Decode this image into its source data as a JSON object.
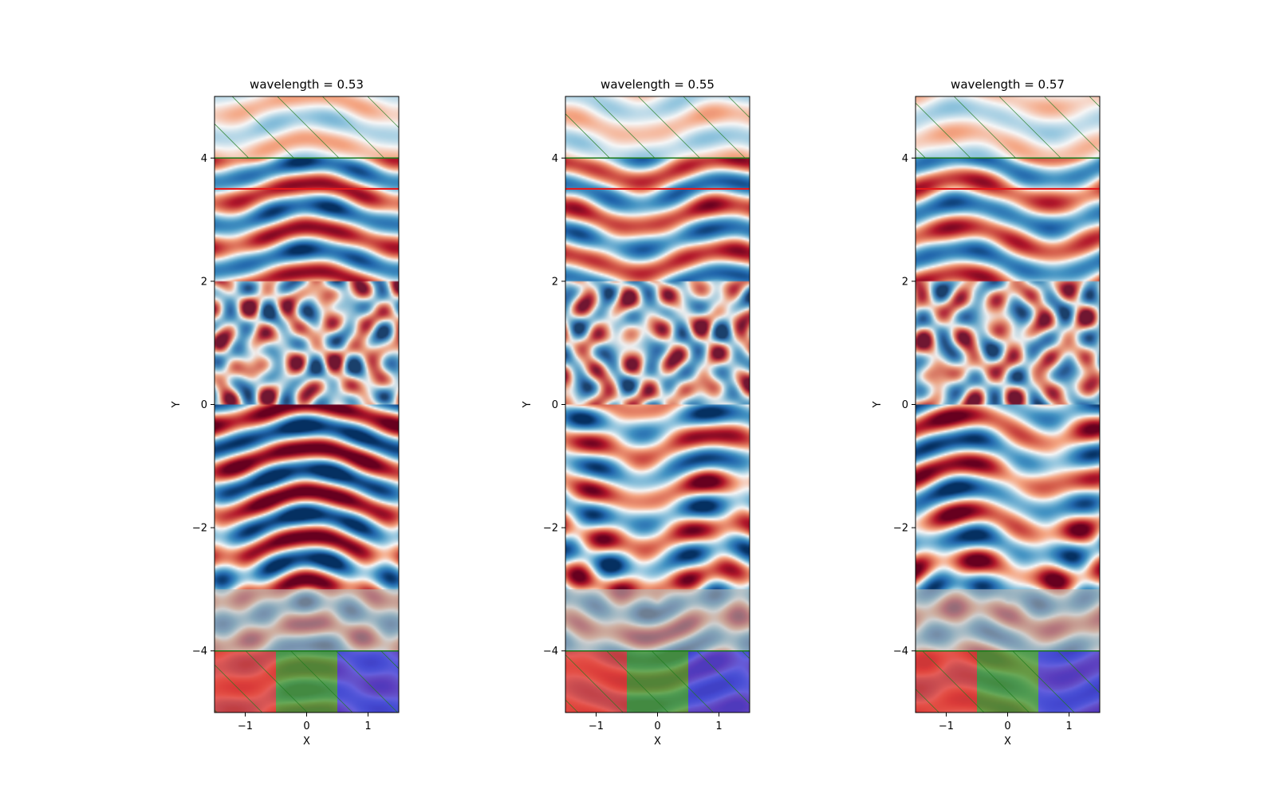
{
  "chart_data": [
    {
      "type": "heatmap",
      "title": "wavelength = 0.53",
      "xlabel": "X",
      "ylabel": "Y",
      "xlim": [
        -1.5,
        1.5
      ],
      "ylim": [
        -5,
        5
      ],
      "xticks": [
        -1,
        0,
        1
      ],
      "xtick_labels": [
        "−1",
        "0",
        "1"
      ],
      "yticks": [
        -4,
        -2,
        0,
        2,
        4
      ],
      "ytick_labels": [
        "−4",
        "−2",
        "0",
        "2",
        "4"
      ],
      "regions": [
        {
          "name": "top-boundary",
          "y0": 4,
          "y1": 5,
          "hatch": true
        },
        {
          "name": "scattering-layer",
          "y0": 0,
          "y1": 2
        },
        {
          "name": "bottom-grey-layer",
          "y0": -4,
          "y1": -3
        },
        {
          "name": "red-pixel",
          "x0": -1.5,
          "x1": -0.5,
          "y0": -5,
          "y1": -4,
          "color": "#e0413c"
        },
        {
          "name": "green-pixel",
          "x0": -0.5,
          "x1": 0.5,
          "y0": -5,
          "y1": -4,
          "color": "#4f9a3c"
        },
        {
          "name": "blue-pixel",
          "x0": 0.5,
          "x1": 1.5,
          "y0": -5,
          "y1": -4,
          "color": "#4b44d8"
        }
      ],
      "monitor_line_y": 3.5,
      "colormap": "RdBu",
      "seed": 3
    },
    {
      "type": "heatmap",
      "title": "wavelength = 0.55",
      "xlabel": "X",
      "ylabel": "Y",
      "xlim": [
        -1.5,
        1.5
      ],
      "ylim": [
        -5,
        5
      ],
      "xticks": [
        -1,
        0,
        1
      ],
      "xtick_labels": [
        "−1",
        "0",
        "1"
      ],
      "yticks": [
        -4,
        -2,
        0,
        2,
        4
      ],
      "ytick_labels": [
        "−4",
        "−2",
        "0",
        "2",
        "4"
      ],
      "regions": [
        {
          "name": "top-boundary",
          "y0": 4,
          "y1": 5,
          "hatch": true
        },
        {
          "name": "scattering-layer",
          "y0": 0,
          "y1": 2
        },
        {
          "name": "bottom-grey-layer",
          "y0": -4,
          "y1": -3
        },
        {
          "name": "red-pixel",
          "x0": -1.5,
          "x1": -0.5,
          "y0": -5,
          "y1": -4,
          "color": "#e0413c"
        },
        {
          "name": "green-pixel",
          "x0": -0.5,
          "x1": 0.5,
          "y0": -5,
          "y1": -4,
          "color": "#4f9a3c"
        },
        {
          "name": "blue-pixel",
          "x0": 0.5,
          "x1": 1.5,
          "y0": -5,
          "y1": -4,
          "color": "#4b44d8"
        }
      ],
      "monitor_line_y": 3.5,
      "colormap": "RdBu",
      "seed": 7
    },
    {
      "type": "heatmap",
      "title": "wavelength = 0.57",
      "xlabel": "X",
      "ylabel": "Y",
      "xlim": [
        -1.5,
        1.5
      ],
      "ylim": [
        -5,
        5
      ],
      "xticks": [
        -1,
        0,
        1
      ],
      "xtick_labels": [
        "−1",
        "0",
        "1"
      ],
      "yticks": [
        -4,
        -2,
        0,
        2,
        4
      ],
      "ytick_labels": [
        "−4",
        "−2",
        "0",
        "2",
        "4"
      ],
      "regions": [
        {
          "name": "top-boundary",
          "y0": 4,
          "y1": 5,
          "hatch": true
        },
        {
          "name": "scattering-layer",
          "y0": 0,
          "y1": 2
        },
        {
          "name": "bottom-grey-layer",
          "y0": -4,
          "y1": -3
        },
        {
          "name": "red-pixel",
          "x0": -1.5,
          "x1": -0.5,
          "y0": -5,
          "y1": -4,
          "color": "#e0413c"
        },
        {
          "name": "green-pixel",
          "x0": -0.5,
          "x1": 0.5,
          "y0": -5,
          "y1": -4,
          "color": "#4f9a3c"
        },
        {
          "name": "blue-pixel",
          "x0": 0.5,
          "x1": 1.5,
          "y0": -5,
          "y1": -4,
          "color": "#4b44d8"
        }
      ],
      "monitor_line_y": 3.5,
      "colormap": "RdBu",
      "seed": 11
    }
  ],
  "colors": {
    "monitor_line": "#e31a1c",
    "boundary": "#1a7a1a",
    "hatch": "#1a7a1a",
    "grey_overlay": "#b4b4b4"
  }
}
